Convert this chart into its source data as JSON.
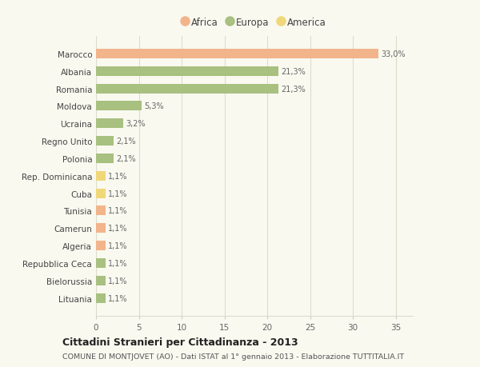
{
  "categories": [
    "Marocco",
    "Albania",
    "Romania",
    "Moldova",
    "Ucraina",
    "Regno Unito",
    "Polonia",
    "Rep. Dominicana",
    "Cuba",
    "Tunisia",
    "Camerun",
    "Algeria",
    "Repubblica Ceca",
    "Bielorussia",
    "Lituania"
  ],
  "values": [
    33.0,
    21.3,
    21.3,
    5.3,
    3.2,
    2.1,
    2.1,
    1.1,
    1.1,
    1.1,
    1.1,
    1.1,
    1.1,
    1.1,
    1.1
  ],
  "labels": [
    "33,0%",
    "21,3%",
    "21,3%",
    "5,3%",
    "3,2%",
    "2,1%",
    "2,1%",
    "1,1%",
    "1,1%",
    "1,1%",
    "1,1%",
    "1,1%",
    "1,1%",
    "1,1%",
    "1,1%"
  ],
  "colors": [
    "#f2b48a",
    "#a8c080",
    "#a8c080",
    "#a8c080",
    "#a8c080",
    "#a8c080",
    "#a8c080",
    "#f0d878",
    "#f0d878",
    "#f2b48a",
    "#f2b48a",
    "#f2b48a",
    "#a8c080",
    "#a8c080",
    "#a8c080"
  ],
  "legend_labels": [
    "Africa",
    "Europa",
    "America"
  ],
  "legend_colors": [
    "#f2b48a",
    "#a8c080",
    "#f0d878"
  ],
  "title": "Cittadini Stranieri per Cittadinanza - 2013",
  "subtitle": "COMUNE DI MONTJOVET (AO) - Dati ISTAT al 1° gennaio 2013 - Elaborazione TUTTITALIA.IT",
  "xlim": [
    0,
    37
  ],
  "xticks": [
    0,
    5,
    10,
    15,
    20,
    25,
    30,
    35
  ],
  "background_color": "#f9f9f0",
  "grid_color": "#ddddcc"
}
